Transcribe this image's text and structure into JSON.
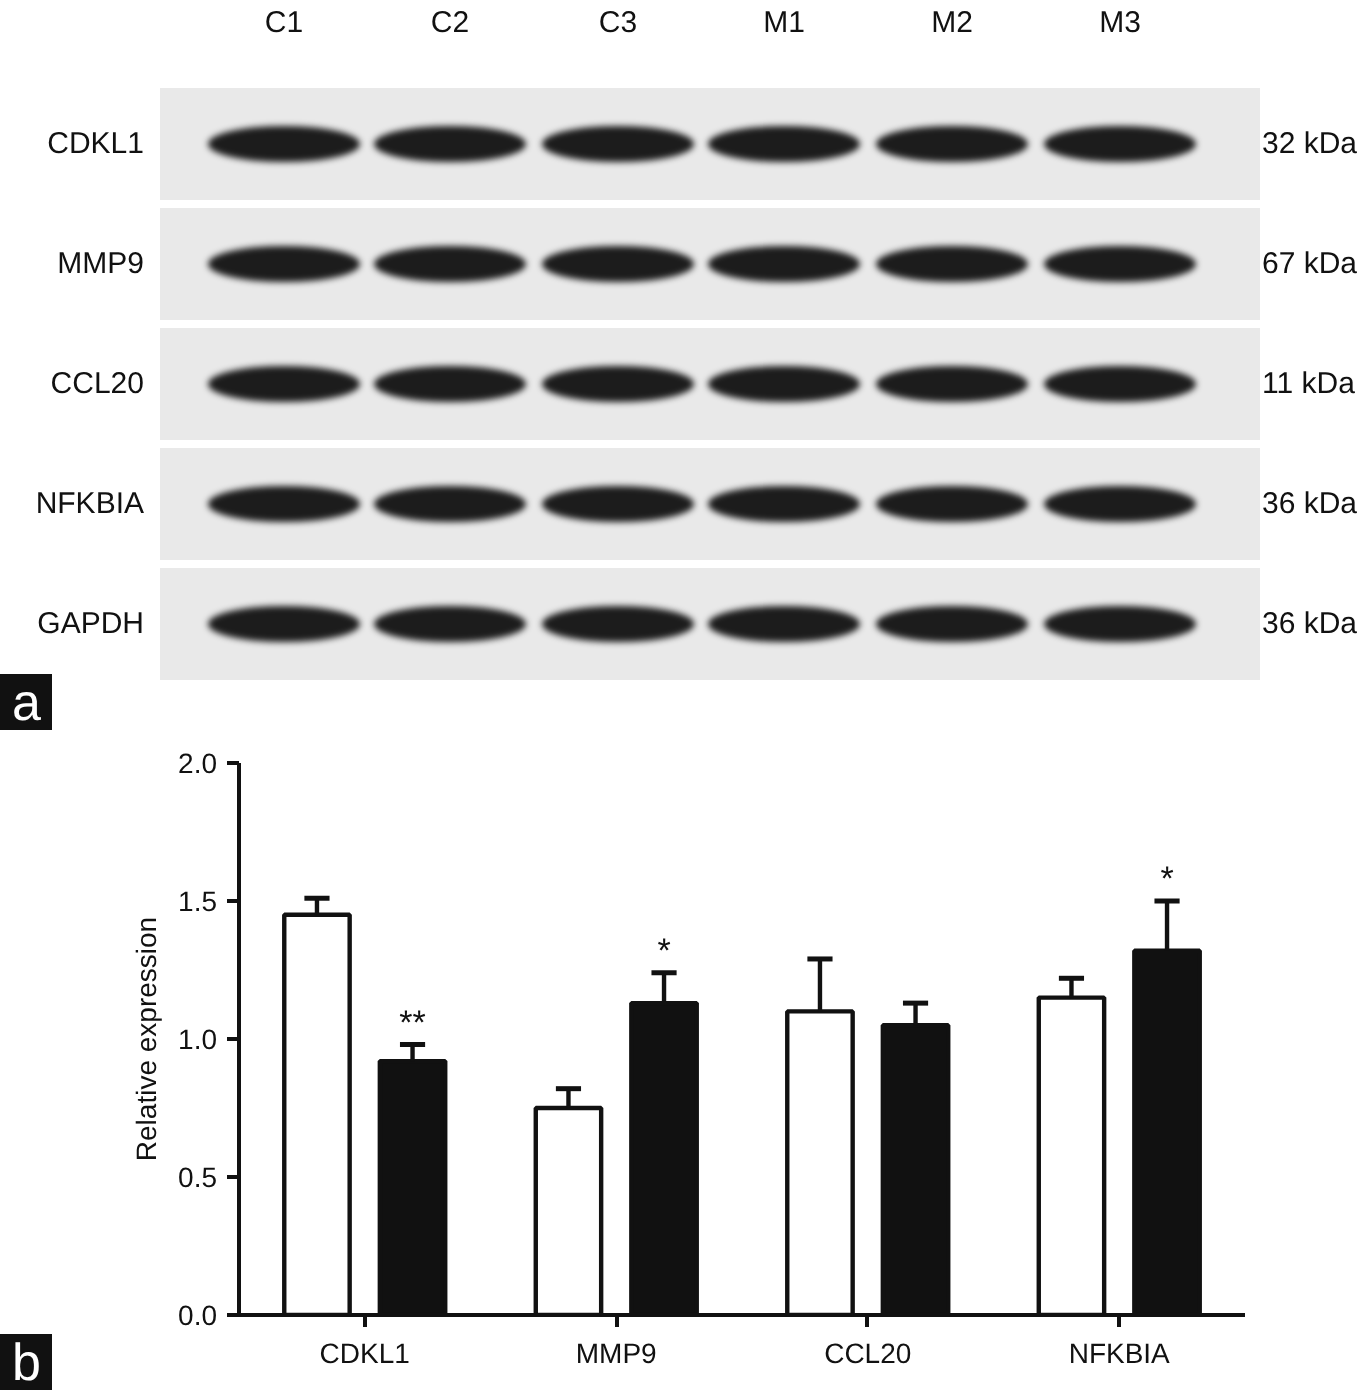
{
  "chart_data": [
    {
      "type": "other",
      "categories": [
        "C1",
        "C2",
        "C3",
        "M1",
        "M2",
        "M3"
      ],
      "y_categories": [
        "CDKL1",
        "MMP9",
        "CCL20",
        "NFKBIA",
        "GAPDH"
      ],
      "y2_categories": [
        "32 kDa",
        "67 kDa",
        "11 kDa",
        "36 kDa",
        "36 kDa"
      ],
      "annotations": [
        "a"
      ]
    },
    {
      "type": "bar",
      "categories": [
        "CDKL1",
        "MMP9",
        "CCL20",
        "NFKBIA"
      ],
      "series": [
        {
          "color": "#ffffff",
          "values": [
            1.45,
            0.75,
            1.1,
            1.15
          ],
          "errors": [
            [
              1.45,
              1.51
            ],
            [
              0.75,
              0.82
            ],
            [
              1.1,
              1.29
            ],
            [
              1.15,
              1.22
            ]
          ]
        },
        {
          "color": "#111111",
          "values": [
            0.92,
            1.13,
            1.05,
            1.32
          ],
          "errors": [
            [
              0.92,
              0.98
            ],
            [
              1.13,
              1.24
            ],
            [
              1.05,
              1.13
            ],
            [
              1.32,
              1.5
            ]
          ],
          "value_labels": [
            "**",
            "*",
            null,
            "*"
          ]
        }
      ],
      "ylabel": "Relative expression",
      "ylim": [
        0,
        2.0
      ],
      "yticks": [
        {
          "value": 0,
          "label": "0.0"
        },
        {
          "value": 0.5,
          "label": "0.5"
        },
        {
          "value": 1.0,
          "label": "1.0"
        },
        {
          "value": 1.5,
          "label": "1.5"
        },
        {
          "value": 2.0,
          "label": "2.0"
        }
      ],
      "grid": false,
      "annotations": [
        "b"
      ]
    }
  ]
}
